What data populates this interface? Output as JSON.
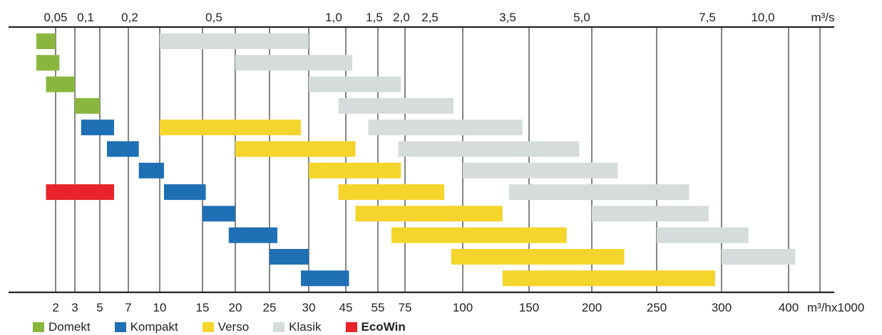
{
  "chart_data": {
    "type": "bar",
    "subtype": "range-bars",
    "top_axis": {
      "unit": "m³/s",
      "ticks": [
        "0,05",
        "0,1",
        "0,2",
        "0,5",
        "1,0",
        "1,5",
        "2,0",
        "2,5",
        "3,5",
        "5,0",
        "7,5",
        "10,0"
      ]
    },
    "bottom_axis": {
      "unit": "m³/hx1000",
      "ticks": [
        "2",
        "3",
        "5",
        "7",
        "10",
        "15",
        "20",
        "25",
        "30",
        "45",
        "55",
        "75",
        "100",
        "150",
        "200",
        "250",
        "300",
        "400"
      ]
    },
    "series": [
      {
        "name": "Domekt",
        "color": "#8ab63f",
        "bold": false,
        "ranges": [
          [
            1,
            2
          ],
          [
            1,
            2.2
          ],
          [
            1.5,
            3
          ],
          [
            3,
            5
          ]
        ]
      },
      {
        "name": "Kompakt",
        "color": "#1f6fb4",
        "bold": false,
        "ranges": [
          [
            3.5,
            6
          ],
          [
            5.5,
            8
          ],
          [
            8,
            10.5
          ],
          [
            10.5,
            15.5
          ],
          [
            15,
            20
          ],
          [
            19,
            26
          ],
          [
            25,
            30
          ],
          [
            29,
            46
          ]
        ]
      },
      {
        "name": "Verso",
        "color": "#f3d52c",
        "bold": false,
        "ranges": [
          [
            10,
            29
          ],
          [
            20,
            48
          ],
          [
            30,
            72
          ],
          [
            42,
            92
          ],
          [
            48,
            130
          ],
          [
            65,
            180
          ],
          [
            95,
            225
          ],
          [
            130,
            295
          ]
        ]
      },
      {
        "name": "Klasik",
        "color": "#d5dcdb",
        "bold": false,
        "ranges": [
          [
            10,
            30
          ],
          [
            20,
            47
          ],
          [
            30,
            72
          ],
          [
            42,
            96
          ],
          [
            52,
            145
          ],
          [
            70,
            190
          ],
          [
            100,
            220
          ],
          [
            135,
            275
          ],
          [
            200,
            290
          ],
          [
            250,
            340
          ],
          [
            300,
            410
          ]
        ]
      },
      {
        "name": "EcoWin",
        "color": "#e8232a",
        "bold": true,
        "ranges": [
          [
            1.5,
            6
          ]
        ]
      }
    ],
    "bars": [
      {
        "series": "Domekt",
        "range": [
          1,
          2
        ]
      },
      {
        "series": "Klasik",
        "range": [
          10,
          30
        ]
      },
      {
        "series": "Domekt",
        "range": [
          1,
          2.2
        ]
      },
      {
        "series": "Klasik",
        "range": [
          20,
          47
        ]
      },
      {
        "series": "Domekt",
        "range": [
          1.5,
          3
        ]
      },
      {
        "series": "Klasik",
        "range": [
          30,
          72
        ]
      },
      {
        "series": "Domekt",
        "range": [
          3,
          5
        ]
      },
      {
        "series": "Klasik",
        "range": [
          42,
          96
        ]
      },
      {
        "series": "Kompakt",
        "range": [
          3.5,
          6
        ]
      },
      {
        "series": "Verso",
        "range": [
          10,
          29
        ]
      },
      {
        "series": "Klasik",
        "range": [
          52,
          145
        ]
      },
      {
        "series": "Kompakt",
        "range": [
          5.5,
          8
        ]
      },
      {
        "series": "Verso",
        "range": [
          20,
          48
        ]
      },
      {
        "series": "Klasik",
        "range": [
          70,
          190
        ]
      },
      {
        "series": "Kompakt",
        "range": [
          8,
          10.5
        ]
      },
      {
        "series": "Verso",
        "range": [
          30,
          72
        ]
      },
      {
        "series": "Klasik",
        "range": [
          100,
          220
        ]
      },
      {
        "series": "EcoWin",
        "range": [
          1.5,
          6
        ]
      },
      {
        "series": "Kompakt",
        "range": [
          10.5,
          15.5
        ]
      },
      {
        "series": "Verso",
        "range": [
          42,
          92
        ]
      },
      {
        "series": "Klasik",
        "range": [
          135,
          275
        ]
      },
      {
        "series": "Kompakt",
        "range": [
          15,
          20
        ]
      },
      {
        "series": "Verso",
        "range": [
          48,
          130
        ]
      },
      {
        "series": "Klasik",
        "range": [
          200,
          290
        ]
      },
      {
        "series": "Kompakt",
        "range": [
          19,
          26
        ]
      },
      {
        "series": "Verso",
        "range": [
          65,
          180
        ]
      },
      {
        "series": "Klasik",
        "range": [
          250,
          340
        ]
      },
      {
        "series": "Kompakt",
        "range": [
          25,
          30
        ]
      },
      {
        "series": "Verso",
        "range": [
          95,
          225
        ]
      },
      {
        "series": "Klasik",
        "range": [
          300,
          410
        ]
      },
      {
        "series": "Kompakt",
        "range": [
          29,
          46
        ]
      },
      {
        "series": "Verso",
        "range": [
          130,
          295
        ]
      }
    ],
    "grid": true,
    "legend_placement": "bottom"
  }
}
